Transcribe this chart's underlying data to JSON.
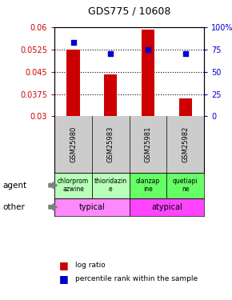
{
  "title": "GDS775 / 10608",
  "samples": [
    "GSM25980",
    "GSM25983",
    "GSM25981",
    "GSM25982"
  ],
  "log_ratio": [
    0.0525,
    0.044,
    0.059,
    0.036
  ],
  "percentile_pct": [
    83,
    70,
    75,
    70
  ],
  "ylim_left": [
    0.03,
    0.06
  ],
  "yticks_left": [
    0.03,
    0.0375,
    0.045,
    0.0525,
    0.06
  ],
  "ytick_labels_left": [
    "0.03",
    "0.0375",
    "0.045",
    "0.0525",
    "0.06"
  ],
  "yticks_right": [
    0,
    25,
    50,
    75,
    100
  ],
  "ytick_labels_right": [
    "0",
    "25",
    "50",
    "75",
    "100%"
  ],
  "bar_color": "#cc0000",
  "dot_color": "#0000cc",
  "agent_labels": [
    "chlorprom\nazwine",
    "thioridazin\ne",
    "olanzap\nine",
    "quetiapi\nne"
  ],
  "agent_labels_real": [
    "chlorprom\nazwine",
    "thioridazin\ne",
    "olanzap\nine",
    "quetiapi\nne"
  ],
  "agent_colors": [
    "#b8ffb8",
    "#b8ffb8",
    "#66ff66",
    "#66ff66"
  ],
  "other_color_typical": "#ff88ff",
  "other_color_atypical": "#ff44ff",
  "gray_box_color": "#cccccc",
  "background_color": "#ffffff",
  "left_tick_color": "#cc0000",
  "right_tick_color": "#0000cc",
  "bar_width": 0.35
}
